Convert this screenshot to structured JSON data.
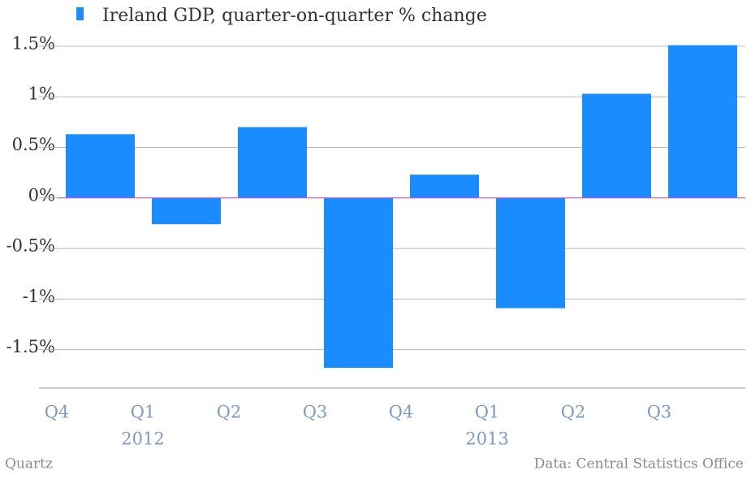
{
  "chart_data": {
    "type": "bar",
    "legend": "Ireland GDP, quarter-on-quarter % change",
    "categories": [
      "Q4",
      "Q1",
      "Q2",
      "Q3",
      "Q4",
      "Q1",
      "Q2",
      "Q3"
    ],
    "years": [
      null,
      "2012",
      null,
      null,
      null,
      "2013",
      null,
      null
    ],
    "values": [
      0.63,
      -0.26,
      0.7,
      -1.68,
      0.23,
      -1.09,
      1.03,
      1.51
    ],
    "color": "#1a8cff",
    "ylim": [
      -1.88,
      1.62
    ],
    "yticks": [
      {
        "value": -1.5,
        "label": "-1.5%"
      },
      {
        "value": -1,
        "label": "-1%"
      },
      {
        "value": -0.5,
        "label": "-0.5%"
      },
      {
        "value": 0,
        "label": "0%"
      },
      {
        "value": 0.5,
        "label": "0.5%"
      },
      {
        "value": 1,
        "label": "1%"
      },
      {
        "value": 1.5,
        "label": "1.5%"
      }
    ],
    "grid": true,
    "source": "Data: Central Statistics Office",
    "brand": "Quartz"
  }
}
